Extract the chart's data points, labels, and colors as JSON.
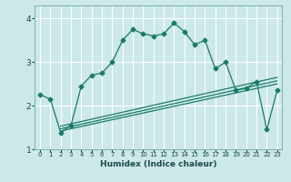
{
  "xlabel": "Humidex (Indice chaleur)",
  "bg_color": "#cce8e8",
  "grid_color": "#ffffff",
  "line_color": "#1a7a6a",
  "xlim": [
    -0.5,
    23.5
  ],
  "ylim": [
    1.0,
    4.3
  ],
  "xticks": [
    0,
    1,
    2,
    3,
    4,
    5,
    6,
    7,
    8,
    9,
    10,
    11,
    12,
    13,
    14,
    15,
    16,
    17,
    18,
    19,
    20,
    21,
    22,
    23
  ],
  "yticks": [
    1,
    2,
    3,
    4
  ],
  "main_x": [
    0,
    1,
    2,
    3,
    4,
    5,
    6,
    7,
    8,
    9,
    10,
    11,
    12,
    13,
    14,
    15,
    16,
    17,
    18,
    19,
    20,
    21,
    22,
    23
  ],
  "main_y": [
    2.25,
    2.15,
    1.38,
    1.55,
    2.45,
    2.7,
    2.75,
    3.0,
    3.5,
    3.75,
    3.65,
    3.6,
    3.65,
    3.9,
    3.7,
    3.4,
    3.5,
    2.85,
    3.0,
    2.35,
    2.4,
    2.55,
    1.45,
    2.35
  ],
  "line1_x": [
    2,
    23
  ],
  "line1_y": [
    1.42,
    2.5
  ],
  "line2_x": [
    2,
    23
  ],
  "line2_y": [
    1.47,
    2.57
  ],
  "line3_x": [
    2,
    23
  ],
  "line3_y": [
    1.53,
    2.65
  ]
}
